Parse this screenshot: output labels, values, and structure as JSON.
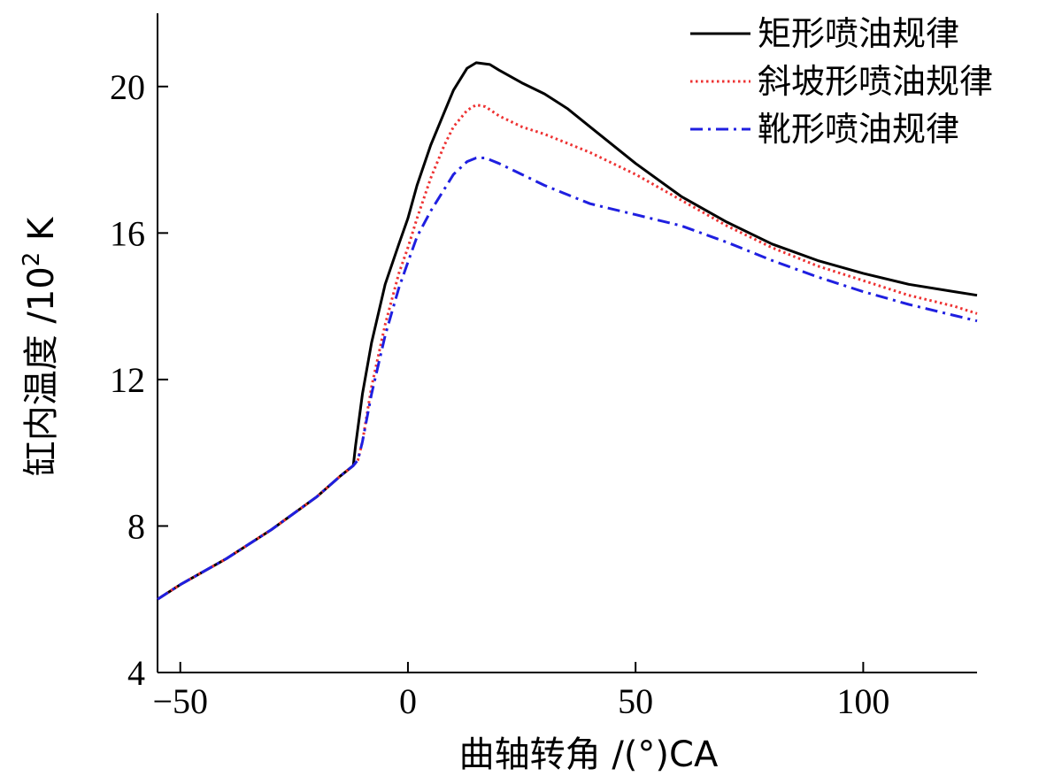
{
  "chart_data": {
    "type": "line",
    "title": "",
    "xlabel": "曲轴转角 /(°)CA",
    "ylabel_main": "缸内温度 /10",
    "ylabel_exp": "2",
    "ylabel_unit": " K",
    "xlim": [
      -55,
      125
    ],
    "ylim": [
      4,
      22
    ],
    "xticks": [
      -50,
      0,
      50,
      100
    ],
    "xtick_labels": [
      "−50",
      "0",
      "50",
      "100"
    ],
    "yticks": [
      4,
      8,
      12,
      16,
      20
    ],
    "ytick_labels": [
      "4",
      "8",
      "12",
      "16",
      "20"
    ],
    "grid": false,
    "legend_position": "top-right",
    "series": [
      {
        "name": "矩形喷油规律",
        "color": "#000000",
        "style": "solid",
        "x": [
          -55,
          -50,
          -40,
          -30,
          -20,
          -15,
          -12,
          -11.5,
          -10,
          -8,
          -5,
          -2,
          0,
          2,
          5,
          8,
          10,
          13,
          15,
          18,
          20,
          25,
          30,
          35,
          40,
          50,
          60,
          70,
          80,
          90,
          100,
          110,
          120,
          125
        ],
        "y": [
          6.0,
          6.4,
          7.1,
          7.9,
          8.8,
          9.35,
          9.65,
          10.2,
          11.6,
          13.0,
          14.6,
          15.7,
          16.4,
          17.3,
          18.4,
          19.3,
          19.9,
          20.5,
          20.65,
          20.6,
          20.45,
          20.1,
          19.8,
          19.4,
          18.9,
          17.9,
          17.0,
          16.3,
          15.7,
          15.25,
          14.9,
          14.6,
          14.4,
          14.3
        ]
      },
      {
        "name": "斜坡形喷油规律",
        "color": "#ee3333",
        "style": "dotted",
        "x": [
          -55,
          -50,
          -40,
          -30,
          -20,
          -15,
          -12,
          -11,
          -10,
          -8,
          -5,
          -2,
          0,
          2,
          5,
          8,
          10,
          13,
          15,
          17,
          20,
          25,
          30,
          35,
          40,
          50,
          60,
          70,
          80,
          90,
          100,
          110,
          120,
          125
        ],
        "y": [
          6.0,
          6.4,
          7.1,
          7.9,
          8.8,
          9.35,
          9.65,
          9.8,
          10.3,
          11.8,
          13.5,
          14.9,
          15.6,
          16.4,
          17.5,
          18.4,
          18.9,
          19.35,
          19.5,
          19.45,
          19.2,
          18.9,
          18.7,
          18.45,
          18.2,
          17.6,
          16.9,
          16.2,
          15.6,
          15.1,
          14.7,
          14.3,
          14.0,
          13.8
        ]
      },
      {
        "name": "靴形喷油规律",
        "color": "#1f1fe0",
        "style": "dashdot",
        "x": [
          -55,
          -50,
          -40,
          -30,
          -20,
          -15,
          -12,
          -11,
          -10,
          -8,
          -5,
          -2,
          0,
          2,
          5,
          8,
          10,
          13,
          15,
          17,
          20,
          25,
          30,
          35,
          40,
          50,
          60,
          70,
          80,
          90,
          100,
          110,
          120,
          125
        ],
        "y": [
          6.0,
          6.4,
          7.1,
          7.9,
          8.8,
          9.35,
          9.65,
          9.8,
          10.3,
          11.6,
          13.2,
          14.5,
          15.2,
          15.9,
          16.6,
          17.2,
          17.6,
          17.95,
          18.05,
          18.05,
          17.9,
          17.6,
          17.3,
          17.05,
          16.8,
          16.5,
          16.2,
          15.75,
          15.25,
          14.8,
          14.4,
          14.05,
          13.75,
          13.6
        ]
      }
    ]
  }
}
